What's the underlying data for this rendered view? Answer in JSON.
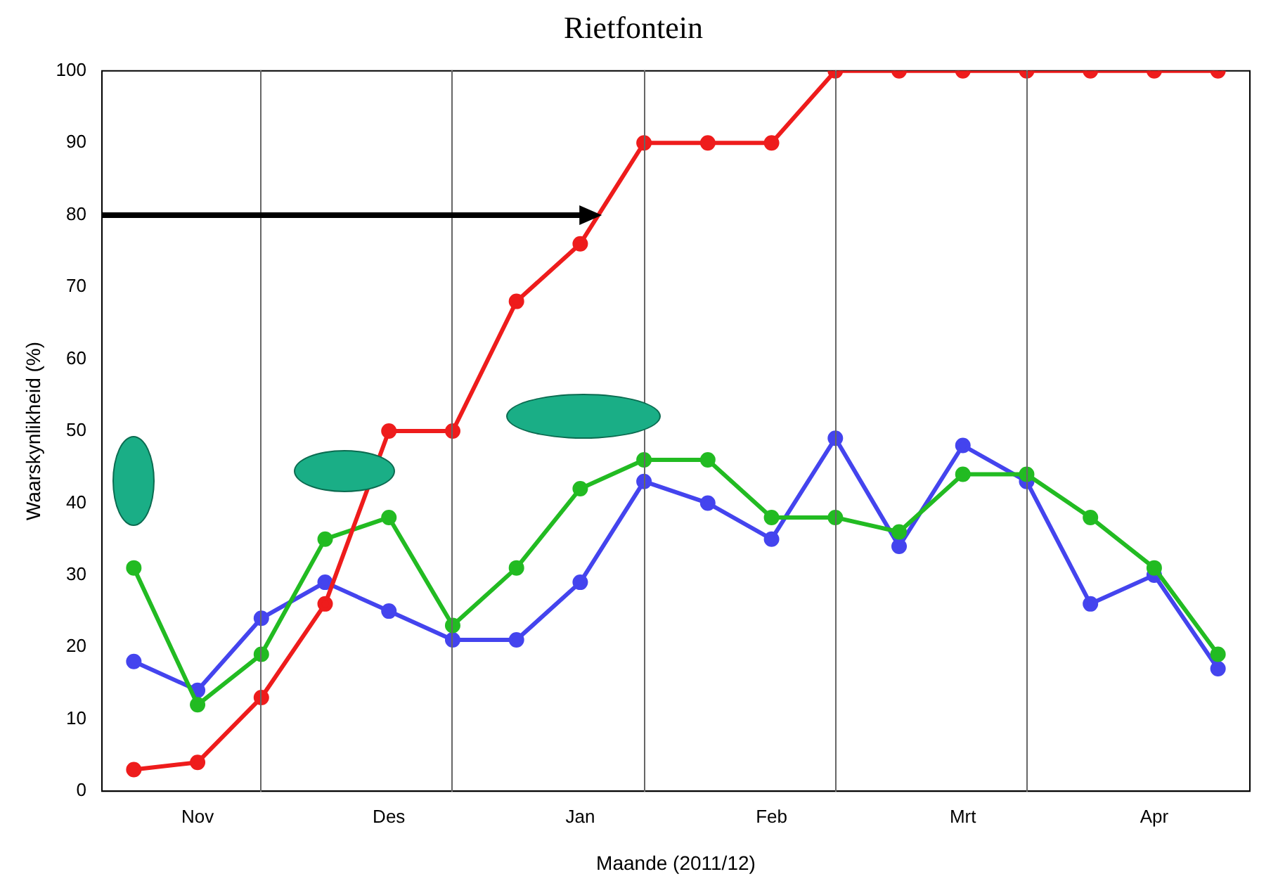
{
  "chart_data": {
    "type": "line",
    "title": "Rietfontein",
    "xlabel": "Maande (2011/12)",
    "ylabel": "Waarskynlikheid (%)",
    "categories": [
      null,
      "Nov",
      null,
      null,
      "Des",
      null,
      null,
      "Jan",
      null,
      null,
      "Feb",
      null,
      null,
      "Mrt",
      null,
      null,
      "Apr",
      null
    ],
    "ylim": [
      0,
      100
    ],
    "yticks": [
      0,
      10,
      20,
      30,
      40,
      50,
      60,
      70,
      80,
      90,
      100
    ],
    "series": [
      {
        "color": "#ee1c1c",
        "values": [
          3,
          4,
          13,
          26,
          50,
          50,
          68,
          76,
          90,
          90,
          90,
          100,
          100,
          100,
          100,
          100,
          100,
          100
        ]
      },
      {
        "color": "#22bb22",
        "values": [
          31,
          12,
          19,
          35,
          38,
          23,
          31,
          42,
          46,
          46,
          38,
          38,
          36,
          44,
          44,
          38,
          31,
          19
        ]
      },
      {
        "color": "#4444ee",
        "values": [
          18,
          14,
          24,
          29,
          25,
          21,
          21,
          29,
          43,
          40,
          35,
          49,
          34,
          48,
          43,
          26,
          30,
          17
        ]
      }
    ],
    "marker": "circle",
    "line_style": "solid",
    "grid": false,
    "legend": false
  }
}
